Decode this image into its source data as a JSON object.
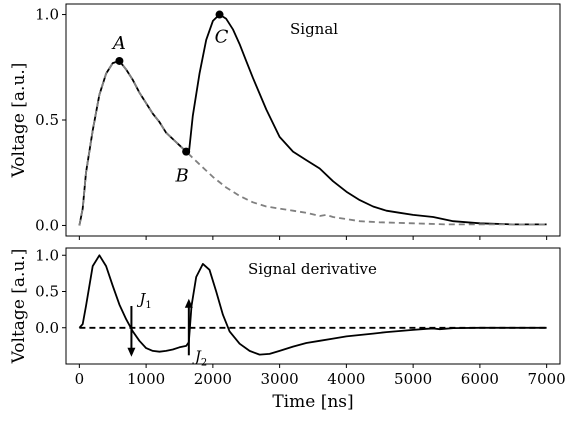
{
  "chart_data": [
    {
      "type": "line",
      "title": "",
      "annotation": "Signal",
      "xlabel": "",
      "ylabel": "Voltage [a.u.]",
      "xlim": [
        -200,
        7200
      ],
      "ylim": [
        -0.05,
        1.05
      ],
      "yticks": [
        0.0,
        0.5,
        1.0
      ],
      "ytick_labels": [
        "0.0",
        "0.5",
        "1.0"
      ],
      "xticks": [
        0,
        1000,
        2000,
        3000,
        4000,
        5000,
        6000,
        7000
      ],
      "grid": false,
      "series": [
        {
          "style": "solid",
          "color": "#000000",
          "x": [
            0,
            50,
            100,
            200,
            300,
            400,
            500,
            600,
            700,
            800,
            900,
            1000,
            1100,
            1200,
            1300,
            1400,
            1500,
            1600,
            1640,
            1700,
            1800,
            1900,
            2000,
            2100,
            2200,
            2300,
            2400,
            2500,
            2600,
            2800,
            3000,
            3200,
            3400,
            3600,
            3800,
            4000,
            4200,
            4400,
            4600,
            4800,
            5000,
            5300,
            5600,
            6000,
            6500,
            7000
          ],
          "y": [
            0.0,
            0.08,
            0.25,
            0.45,
            0.62,
            0.72,
            0.77,
            0.78,
            0.74,
            0.69,
            0.63,
            0.58,
            0.53,
            0.49,
            0.44,
            0.41,
            0.38,
            0.35,
            0.34,
            0.52,
            0.72,
            0.88,
            0.97,
            1.0,
            0.98,
            0.93,
            0.86,
            0.78,
            0.7,
            0.55,
            0.42,
            0.35,
            0.31,
            0.27,
            0.21,
            0.16,
            0.12,
            0.09,
            0.07,
            0.06,
            0.05,
            0.04,
            0.02,
            0.01,
            0.005,
            0.005
          ]
        },
        {
          "style": "dashed",
          "color": "#808080",
          "x": [
            0,
            50,
            100,
            200,
            300,
            400,
            500,
            600,
            700,
            800,
            900,
            1000,
            1100,
            1200,
            1300,
            1400,
            1500,
            1600,
            1700,
            1800,
            1900,
            2000,
            2200,
            2400,
            2600,
            2800,
            3000,
            3200,
            3400,
            3600,
            3700,
            3800,
            4000,
            4200,
            4500,
            5000,
            5500,
            6000,
            7000
          ],
          "y": [
            0.0,
            0.08,
            0.25,
            0.45,
            0.62,
            0.72,
            0.77,
            0.78,
            0.74,
            0.69,
            0.63,
            0.58,
            0.53,
            0.49,
            0.44,
            0.41,
            0.38,
            0.35,
            0.32,
            0.29,
            0.26,
            0.23,
            0.18,
            0.14,
            0.11,
            0.09,
            0.08,
            0.07,
            0.06,
            0.045,
            0.05,
            0.04,
            0.03,
            0.02,
            0.015,
            0.01,
            0.005,
            0.005,
            0.005
          ]
        }
      ],
      "points": [
        {
          "label": "A",
          "x": 600,
          "y": 0.78
        },
        {
          "label": "B",
          "x": 1600,
          "y": 0.35
        },
        {
          "label": "C",
          "x": 2100,
          "y": 1.0
        }
      ]
    },
    {
      "type": "line",
      "title": "",
      "annotation": "Signal derivative",
      "xlabel": "Time [ns]",
      "ylabel": "Voltage [a.u.]",
      "xlim": [
        -200,
        7200
      ],
      "ylim": [
        -0.5,
        1.1
      ],
      "yticks": [
        0.0,
        0.5,
        1.0
      ],
      "ytick_labels": [
        "0.0",
        "0.5",
        "1.0"
      ],
      "xticks": [
        0,
        1000,
        2000,
        3000,
        4000,
        5000,
        6000,
        7000
      ],
      "xtick_labels": [
        "0",
        "1000",
        "2000",
        "3000",
        "4000",
        "5000",
        "6000",
        "7000"
      ],
      "grid": false,
      "series": [
        {
          "style": "solid",
          "color": "#000000",
          "x": [
            0,
            50,
            100,
            200,
            300,
            400,
            500,
            600,
            700,
            800,
            900,
            1000,
            1100,
            1200,
            1300,
            1400,
            1500,
            1600,
            1640,
            1680,
            1750,
            1850,
            1950,
            2050,
            2150,
            2250,
            2400,
            2550,
            2700,
            2850,
            3000,
            3200,
            3400,
            3600,
            3800,
            4000,
            4200,
            4400,
            4600,
            4800,
            5000,
            5200,
            5300,
            5400,
            5600,
            6000,
            6500,
            7000
          ],
          "y": [
            0.0,
            0.05,
            0.3,
            0.85,
            1.0,
            0.85,
            0.58,
            0.32,
            0.12,
            -0.05,
            -0.18,
            -0.28,
            -0.32,
            -0.33,
            -0.32,
            -0.3,
            -0.27,
            -0.25,
            -0.2,
            0.3,
            0.7,
            0.88,
            0.8,
            0.5,
            0.18,
            -0.05,
            -0.22,
            -0.32,
            -0.37,
            -0.36,
            -0.32,
            -0.26,
            -0.21,
            -0.18,
            -0.15,
            -0.12,
            -0.1,
            -0.08,
            -0.06,
            -0.045,
            -0.03,
            -0.015,
            -0.01,
            -0.02,
            -0.005,
            0.0,
            0.0,
            0.0
          ]
        },
        {
          "style": "dashed",
          "color": "#000000",
          "x": [
            0,
            7000
          ],
          "y": [
            0.0,
            0.0
          ]
        }
      ],
      "arrows": [
        {
          "label": "J",
          "subscript": "1",
          "x": 780,
          "y_from": 0.3,
          "y_to": -0.4
        },
        {
          "label": "J",
          "subscript": "2",
          "x": 1640,
          "y_from": -0.38,
          "y_to": 0.4
        }
      ]
    }
  ]
}
